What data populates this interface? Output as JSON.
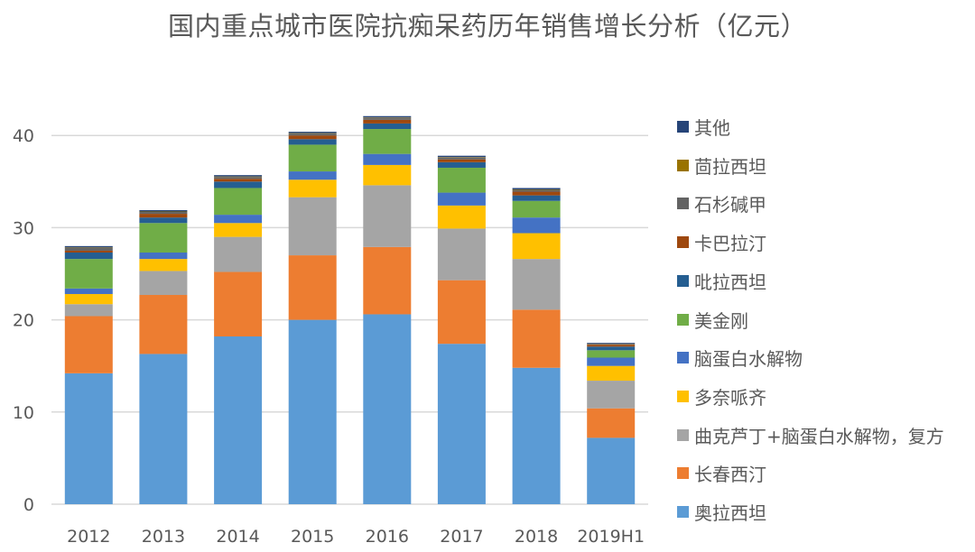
{
  "title": "国内重点城市医院抗痴呆药历年销售增长分析（亿元）",
  "chart_data": {
    "type": "bar",
    "stacked": true,
    "title": "国内重点城市医院抗痴呆药历年销售增长分析（亿元）",
    "xlabel": "",
    "ylabel": "",
    "ylim": [
      0,
      45
    ],
    "yticks": [
      0,
      10,
      20,
      30,
      40
    ],
    "grid": true,
    "legend_position": "right",
    "categories": [
      "2012",
      "2013",
      "2014",
      "2015",
      "2016",
      "2017",
      "2018",
      "2019H1"
    ],
    "series": [
      {
        "name": "奥拉西坦",
        "color": "#5B9BD5",
        "values": [
          14.2,
          16.3,
          18.2,
          20.0,
          20.6,
          17.4,
          14.8,
          7.2
        ]
      },
      {
        "name": "长春西汀",
        "color": "#ED7D31",
        "values": [
          6.2,
          6.4,
          7.0,
          7.0,
          7.3,
          6.9,
          6.3,
          3.2
        ]
      },
      {
        "name": "曲克芦丁+脑蛋白水解物，复方",
        "color": "#A5A5A5",
        "values": [
          1.3,
          2.6,
          3.8,
          6.3,
          6.7,
          5.6,
          5.5,
          3.0
        ]
      },
      {
        "name": "多奈哌齐",
        "color": "#FFC000",
        "values": [
          1.1,
          1.3,
          1.5,
          1.9,
          2.2,
          2.5,
          2.8,
          1.6
        ]
      },
      {
        "name": "脑蛋白水解物",
        "color": "#4472C4",
        "values": [
          0.6,
          0.7,
          0.9,
          0.9,
          1.2,
          1.4,
          1.7,
          0.9
        ]
      },
      {
        "name": "美金刚",
        "color": "#70AD47",
        "values": [
          3.2,
          3.2,
          2.9,
          2.9,
          2.7,
          2.7,
          1.8,
          0.8
        ]
      },
      {
        "name": "吡拉西坦",
        "color": "#255E91",
        "values": [
          0.7,
          0.6,
          0.7,
          0.6,
          0.6,
          0.6,
          0.6,
          0.4
        ]
      },
      {
        "name": "卡巴拉汀",
        "color": "#9E480E",
        "values": [
          0.2,
          0.4,
          0.3,
          0.4,
          0.4,
          0.3,
          0.4,
          0.2
        ]
      },
      {
        "name": "石杉碱甲",
        "color": "#636363",
        "values": [
          0.3,
          0.2,
          0.2,
          0.2,
          0.2,
          0.2,
          0.2,
          0.1
        ]
      },
      {
        "name": "茴拉西坦",
        "color": "#997300",
        "values": [
          0.05,
          0.05,
          0.05,
          0.05,
          0.05,
          0.05,
          0.05,
          0.02
        ]
      },
      {
        "name": "其他",
        "color": "#264478",
        "values": [
          0.15,
          0.15,
          0.15,
          0.15,
          0.15,
          0.15,
          0.15,
          0.08
        ]
      }
    ],
    "legend_order": [
      "其他",
      "茴拉西坦",
      "石杉碱甲",
      "卡巴拉汀",
      "吡拉西坦",
      "美金刚",
      "脑蛋白水解物",
      "多奈哌齐",
      "曲克芦丁+脑蛋白水解物，复方",
      "长春西汀",
      "奥拉西坦"
    ]
  }
}
